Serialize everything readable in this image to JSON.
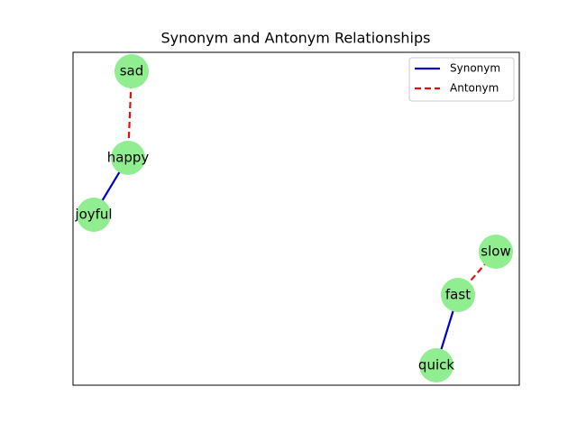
{
  "title": "Synonym and Antonym Relationships",
  "legend": [
    {
      "label": "Synonym",
      "color": "#0000cc",
      "style": "solid"
    },
    {
      "label": "Antonym",
      "color": "#e01010",
      "style": "dashed"
    }
  ],
  "node_color": "#90ee90",
  "nodes": [
    {
      "label": "sad"
    },
    {
      "label": "happy"
    },
    {
      "label": "joyful"
    },
    {
      "label": "slow"
    },
    {
      "label": "fast"
    },
    {
      "label": "quick"
    }
  ],
  "edges": [
    {
      "from": "happy",
      "to": "sad",
      "relation": "Antonym"
    },
    {
      "from": "happy",
      "to": "joyful",
      "relation": "Synonym"
    },
    {
      "from": "fast",
      "to": "slow",
      "relation": "Antonym"
    },
    {
      "from": "fast",
      "to": "quick",
      "relation": "Synonym"
    }
  ]
}
